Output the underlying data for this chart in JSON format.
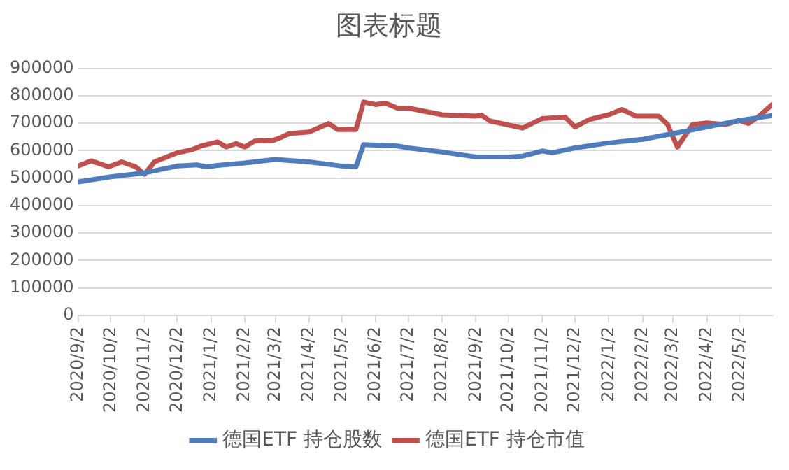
{
  "chart_data": {
    "type": "line",
    "title": "图表标题",
    "xlim": [
      "2020-09-02",
      "2022-06-01"
    ],
    "xticks": [
      {
        "value": "2020-09-02",
        "label": "2020/9/2"
      },
      {
        "value": "2020-10-02",
        "label": "2020/10/2"
      },
      {
        "value": "2020-11-02",
        "label": "2020/11/2"
      },
      {
        "value": "2020-12-02",
        "label": "2020/12/2"
      },
      {
        "value": "2021-01-02",
        "label": "2021/1/2"
      },
      {
        "value": "2021-02-02",
        "label": "2021/2/2"
      },
      {
        "value": "2021-03-02",
        "label": "2021/3/2"
      },
      {
        "value": "2021-04-02",
        "label": "2021/4/2"
      },
      {
        "value": "2021-05-02",
        "label": "2021/5/2"
      },
      {
        "value": "2021-06-02",
        "label": "2021/6/2"
      },
      {
        "value": "2021-07-02",
        "label": "2021/7/2"
      },
      {
        "value": "2021-08-02",
        "label": "2021/8/2"
      },
      {
        "value": "2021-09-02",
        "label": "2021/9/2"
      },
      {
        "value": "2021-10-02",
        "label": "2021/10/2"
      },
      {
        "value": "2021-11-02",
        "label": "2021/11/2"
      },
      {
        "value": "2021-12-02",
        "label": "2021/12/2"
      },
      {
        "value": "2022-01-02",
        "label": "2022/1/2"
      },
      {
        "value": "2022-02-02",
        "label": "2022/2/2"
      },
      {
        "value": "2022-03-02",
        "label": "2022/3/2"
      },
      {
        "value": "2022-04-02",
        "label": "2022/4/2"
      },
      {
        "value": "2022-05-02",
        "label": "2022/5/2"
      }
    ],
    "ylim": [
      0,
      900000
    ],
    "yticks": [
      0,
      100000,
      200000,
      300000,
      400000,
      500000,
      600000,
      700000,
      800000,
      900000
    ],
    "grid": "y",
    "legend": "bottom",
    "marker": "none",
    "line_style": "solid",
    "series": [
      {
        "name": "德国ETF 持仓股数",
        "color": "#4f7cba",
        "x": [
          "2020-09-02",
          "2020-10-02",
          "2020-11-02",
          "2020-12-02",
          "2020-12-20",
          "2020-12-29",
          "2021-01-08",
          "2021-02-02",
          "2021-03-02",
          "2021-04-02",
          "2021-05-02",
          "2021-05-15",
          "2021-05-22",
          "2021-06-22",
          "2021-07-02",
          "2021-08-02",
          "2021-09-02",
          "2021-10-02",
          "2021-10-15",
          "2021-11-02",
          "2021-11-11",
          "2021-12-02",
          "2022-01-02",
          "2022-02-02",
          "2022-03-02",
          "2022-04-02",
          "2022-05-02",
          "2022-06-01"
        ],
        "values": [
          486000,
          505000,
          519000,
          544000,
          548000,
          541000,
          546000,
          555000,
          568000,
          559000,
          544000,
          541000,
          622000,
          617000,
          610000,
          595000,
          577000,
          577000,
          580000,
          599000,
          592000,
          610000,
          628000,
          641000,
          662000,
          686000,
          710000,
          728000
        ]
      },
      {
        "name": "德国ETF 持仓市值",
        "color": "#c0504d",
        "x": [
          "2020-09-02",
          "2020-09-14",
          "2020-09-30",
          "2020-10-12",
          "2020-10-25",
          "2020-11-02",
          "2020-11-11",
          "2020-12-02",
          "2020-12-16",
          "2020-12-24",
          "2021-01-08",
          "2021-01-16",
          "2021-01-25",
          "2021-02-02",
          "2021-02-11",
          "2021-02-28",
          "2021-03-06",
          "2021-03-15",
          "2021-04-02",
          "2021-04-20",
          "2021-04-28",
          "2021-05-15",
          "2021-05-22",
          "2021-06-02",
          "2021-06-11",
          "2021-06-22",
          "2021-07-02",
          "2021-08-02",
          "2021-09-02",
          "2021-09-07",
          "2021-09-15",
          "2021-10-15",
          "2021-11-02",
          "2021-11-23",
          "2021-12-02",
          "2021-12-15",
          "2022-01-02",
          "2022-01-14",
          "2022-01-27",
          "2022-02-17",
          "2022-02-25",
          "2022-03-06",
          "2022-03-20",
          "2022-04-02",
          "2022-04-19",
          "2022-05-02",
          "2022-05-10",
          "2022-05-18",
          "2022-06-01"
        ],
        "values": [
          544000,
          563000,
          541000,
          559000,
          541000,
          514000,
          559000,
          592000,
          604000,
          617000,
          632000,
          613000,
          626000,
          613000,
          635000,
          637000,
          646000,
          662000,
          668000,
          699000,
          677000,
          677000,
          777000,
          768000,
          773000,
          755000,
          755000,
          731000,
          726000,
          730000,
          708000,
          682000,
          717000,
          722000,
          686000,
          713000,
          731000,
          750000,
          726000,
          726000,
          695000,
          613000,
          695000,
          701000,
          695000,
          710000,
          699000,
          719000,
          768000
        ]
      }
    ]
  }
}
